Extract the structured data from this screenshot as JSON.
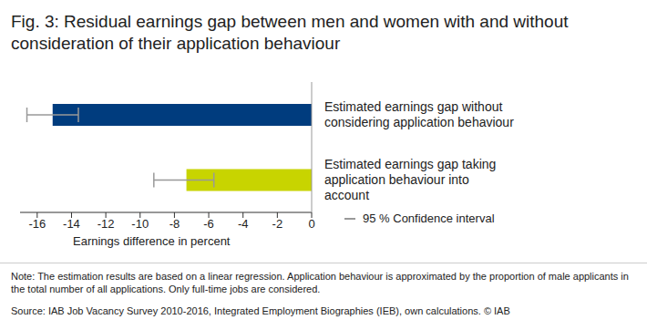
{
  "chart_data": {
    "type": "bar",
    "orientation": "horizontal",
    "title": "Fig. 3: Residual earnings gap between men and women with and without consideration of their application behaviour",
    "categories": [
      "Estimated earnings gap without considering application behaviour",
      "Estimated earnings gap taking application behaviour into account"
    ],
    "values": [
      -15.1,
      -7.3
    ],
    "ci_low": [
      -16.6,
      -9.2
    ],
    "ci_high": [
      -13.6,
      -5.7
    ],
    "ci_label": "95 % Confidence interval",
    "colors": [
      "#003c7e",
      "#c8d400"
    ],
    "xlabel": "Earnings difference in percent",
    "xlim": [
      -17,
      0
    ],
    "xticks": [
      -16,
      -14,
      -12,
      -10,
      -8,
      -6,
      -4,
      -2,
      0
    ],
    "note": "Note: The estimation results are based on a linear regression. Application behaviour is approximated by the proportion of male applicants in the total number of all applications. Only full-time jobs are considered.",
    "source": "Source: IAB Job Vacancy Survey 2010-2016, Integrated Employment Biographies (IEB), own calculations. © IAB"
  }
}
